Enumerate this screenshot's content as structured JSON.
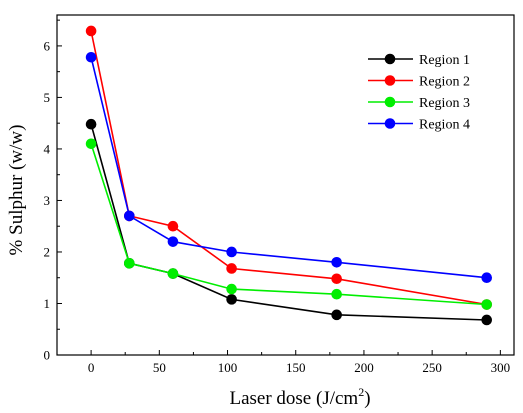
{
  "chart_data": {
    "type": "line",
    "xlabel": "Laser dose (J/cm²)",
    "xlabel_main": "Laser dose (J/cm",
    "xlabel_sup": "2",
    "xlabel_tail": ")",
    "ylabel": "% Sulphur (w/w)",
    "xlim": [
      -25,
      310
    ],
    "ylim": [
      0,
      6.6
    ],
    "xticks": [
      "0",
      "50",
      "100",
      "150",
      "200",
      "250",
      "300"
    ],
    "yticks": [
      "0",
      "1",
      "2",
      "3",
      "4",
      "5",
      "6"
    ],
    "grid": false,
    "legend_position": "top-right",
    "x": [
      0,
      28,
      60,
      103,
      180,
      290
    ],
    "series": [
      {
        "name": "Region 1",
        "color": "#000000",
        "values": [
          4.48,
          1.78,
          1.58,
          1.08,
          0.78,
          0.68
        ]
      },
      {
        "name": "Region 2",
        "color": "#ff0000",
        "values": [
          6.29,
          2.7,
          2.5,
          1.68,
          1.48,
          0.98
        ]
      },
      {
        "name": "Region 3",
        "color": "#00ee00",
        "values": [
          4.1,
          1.78,
          1.58,
          1.28,
          1.18,
          0.98
        ]
      },
      {
        "name": "Region 4",
        "color": "#0000ff",
        "values": [
          5.78,
          2.7,
          2.2,
          2.0,
          1.8,
          1.5
        ]
      }
    ]
  }
}
